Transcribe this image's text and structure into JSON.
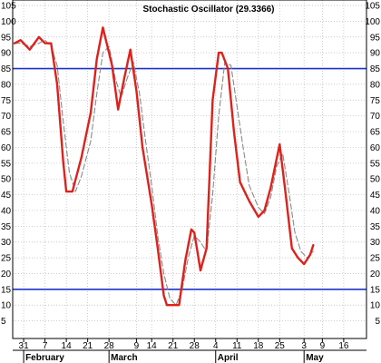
{
  "chart_data": {
    "type": "line",
    "title": "Stochastic Oscillator (29.3366)",
    "xlabel": "",
    "ylabel": "",
    "ylim": [
      0,
      105
    ],
    "yticks": [
      5,
      10,
      15,
      20,
      25,
      30,
      35,
      40,
      45,
      50,
      55,
      60,
      65,
      70,
      75,
      80,
      85,
      90,
      95,
      100,
      105
    ],
    "ytick_labels": [
      "5",
      "10",
      "15",
      "20",
      "25",
      "30",
      "35",
      "40",
      "45",
      "50",
      "55",
      "60",
      "65",
      "70",
      "75",
      "80",
      "85",
      "90",
      "95",
      "100",
      "105"
    ],
    "xticks": [
      {
        "label": "31",
        "x": 0
      },
      {
        "label": "7",
        "x": 7
      },
      {
        "label": "14",
        "x": 14
      },
      {
        "label": "21",
        "x": 21
      },
      {
        "label": "28",
        "x": 28
      },
      {
        "label": "9",
        "x": 37
      },
      {
        "label": "14",
        "x": 42
      },
      {
        "label": "21",
        "x": 49
      },
      {
        "label": "28",
        "x": 56
      },
      {
        "label": "4",
        "x": 63
      },
      {
        "label": "11",
        "x": 70
      },
      {
        "label": "18",
        "x": 77
      },
      {
        "label": "25",
        "x": 84
      },
      {
        "label": "3",
        "x": 92
      },
      {
        "label": "9",
        "x": 98
      },
      {
        "label": "16",
        "x": 105
      }
    ],
    "months": [
      {
        "label": "February",
        "x": 0
      },
      {
        "label": "March",
        "x": 28
      },
      {
        "label": "April",
        "x": 63
      },
      {
        "label": "May",
        "x": 92
      }
    ],
    "xlim": [
      -3,
      112
    ],
    "reference_lines": [
      85,
      15
    ],
    "grid": true,
    "series": [
      {
        "style": "solid",
        "color": "#e0201b",
        "x": [
          -3,
          -1,
          2,
          5,
          7,
          9,
          11,
          13,
          14,
          16,
          19,
          22,
          24,
          26,
          29,
          31,
          33,
          35,
          37,
          39,
          42,
          44,
          46,
          47,
          49,
          51,
          53,
          55,
          56,
          58,
          60,
          62,
          64,
          65,
          67,
          69,
          71,
          74,
          77,
          79,
          81,
          84,
          86,
          88,
          90,
          92,
          94,
          95
        ],
        "values": [
          93,
          94,
          91,
          95,
          93,
          93,
          80,
          55,
          46,
          46,
          57,
          71,
          88,
          98,
          86,
          72,
          82,
          91,
          78,
          60,
          42,
          28,
          13,
          10,
          10,
          10,
          24,
          34,
          33,
          21,
          28,
          75,
          90,
          90,
          85,
          65,
          49,
          43,
          38,
          40,
          47,
          61,
          45,
          28,
          25,
          23,
          26,
          29
        ]
      },
      {
        "style": "dashed",
        "color": "#8a8a8a",
        "x": [
          -3,
          -1,
          2,
          5,
          7,
          9,
          11,
          13,
          15,
          17,
          19,
          22,
          24,
          26,
          28,
          30,
          32,
          34,
          36,
          38,
          40,
          42,
          44,
          46,
          48,
          50,
          52,
          54,
          56,
          58,
          60,
          62,
          64,
          66,
          68,
          70,
          72,
          74,
          77,
          79,
          81,
          83,
          85,
          87,
          89,
          91,
          93,
          95
        ],
        "values": [
          93,
          93,
          92,
          93,
          94,
          92,
          86,
          68,
          52,
          46,
          51,
          62,
          77,
          90,
          92,
          82,
          76,
          82,
          87,
          77,
          62,
          48,
          32,
          20,
          12,
          10,
          15,
          25,
          32,
          30,
          27,
          45,
          70,
          87,
          86,
          73,
          60,
          48,
          41,
          39,
          44,
          54,
          58,
          46,
          33,
          27,
          25,
          27
        ]
      }
    ]
  }
}
